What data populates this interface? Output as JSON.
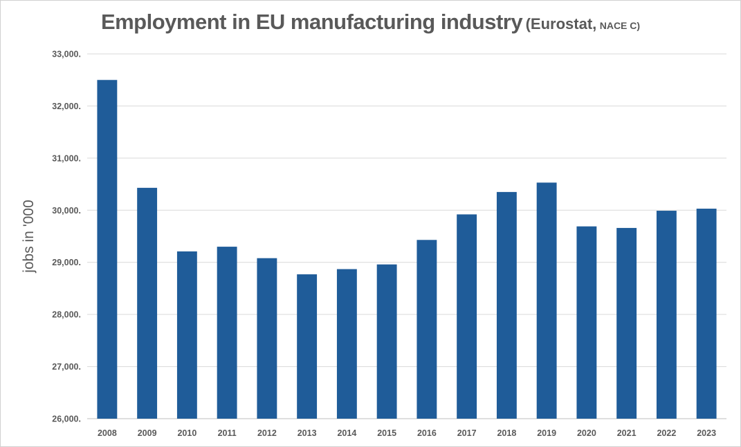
{
  "chart_data": {
    "type": "bar",
    "title": "Employment in EU manufacturing industry",
    "title_suffix": "(Eurostat,",
    "title_suffix_small": "NACE C)",
    "ylabel": "jobs in '000",
    "xlabel": "",
    "categories": [
      "2008",
      "2009",
      "2010",
      "2011",
      "2012",
      "2013",
      "2014",
      "2015",
      "2016",
      "2017",
      "2018",
      "2019",
      "2020",
      "2021",
      "2022",
      "2023"
    ],
    "values": [
      32500,
      30430,
      29210,
      29300,
      29080,
      28770,
      28870,
      28960,
      29430,
      29920,
      30350,
      30530,
      29690,
      29660,
      29990,
      30030
    ],
    "ylim": [
      26000,
      33000
    ],
    "yticks": [
      26000,
      27000,
      28000,
      29000,
      30000,
      31000,
      32000,
      33000
    ],
    "ytick_labels": [
      "26,000.",
      "27,000.",
      "28,000.",
      "29,000.",
      "30,000.",
      "31,000.",
      "32,000.",
      "33,000."
    ],
    "grid": true,
    "bar_color": "#1f5c99",
    "grid_color": "#d9d9d9",
    "text_color": "#595959"
  }
}
